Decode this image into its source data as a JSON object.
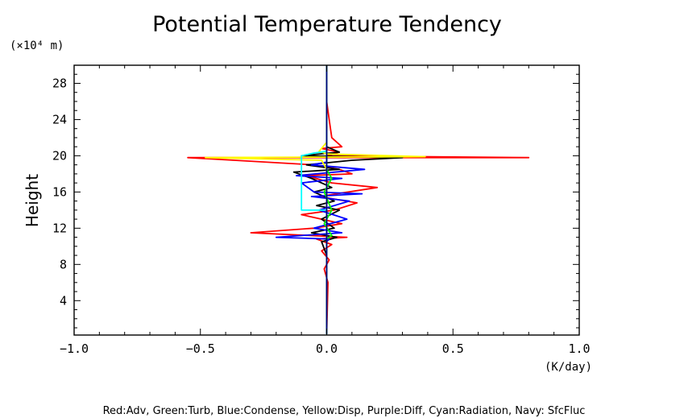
{
  "chart_data": {
    "type": "line",
    "title": "Potential Temperature Tendency",
    "ylabel": "Height",
    "yunit": "(×10⁴ m)",
    "xunit": "(K/day)",
    "footnote": "Red:Adv, Green:Turb, Blue:Condense, Yellow:Disp, Purple:Diff, Cyan:Radiation, Navy: SfcFluc",
    "xlim": [
      -1.0,
      1.0
    ],
    "ylim": [
      0.2,
      30
    ],
    "xticks": [
      -1.0,
      -0.5,
      0.0,
      0.5,
      1.0
    ],
    "xtick_labels": [
      "−1.0",
      "−0.5",
      "0.0",
      "0.5",
      "1.0"
    ],
    "yticks": [
      4,
      8,
      12,
      16,
      20,
      24,
      28
    ],
    "ytick_labels": [
      "4",
      "8",
      "12",
      "16",
      "20",
      "24",
      "28"
    ],
    "grid": false,
    "series": [
      {
        "name": "Red",
        "key": "adv",
        "color": "#ff0000",
        "x": [
          0.0,
          0.005,
          -0.01,
          0.01,
          -0.02,
          0.02,
          -0.04,
          0.08,
          -0.3,
          -0.05,
          0.06,
          -0.1,
          0.03,
          0.12,
          -0.03,
          0.2,
          0.02,
          -0.08,
          0.1,
          0.05,
          -0.05,
          -0.55,
          0.8,
          0.0,
          0.05,
          -0.02,
          0.06,
          0.02,
          0.01,
          0.0,
          0.0
        ],
        "y": [
          0.3,
          6,
          7.5,
          8.5,
          9.5,
          10.2,
          10.8,
          11.0,
          11.5,
          12.0,
          12.5,
          13.5,
          14.0,
          14.8,
          15.5,
          16.5,
          17.0,
          17.8,
          18.0,
          18.5,
          19.0,
          19.8,
          19.8,
          20.0,
          20.4,
          20.8,
          21.0,
          22.0,
          24.0,
          26.0,
          30.0
        ]
      },
      {
        "name": "Black",
        "key": "total",
        "color": "#000000",
        "x": [
          0.0,
          0.0,
          -0.02,
          0.04,
          -0.06,
          0.03,
          -0.02,
          0.05,
          -0.04,
          0.03,
          -0.05,
          0.02,
          -0.06,
          -0.13,
          0.05,
          -0.08,
          0.1,
          0.3,
          -0.1,
          0.05,
          0.0,
          0.0
        ],
        "y": [
          0.3,
          9.0,
          10.5,
          11.0,
          11.5,
          12.0,
          13.0,
          14.0,
          14.5,
          15.0,
          16.0,
          16.5,
          17.5,
          18.2,
          18.5,
          19.0,
          19.5,
          19.8,
          20.0,
          20.4,
          21.0,
          30.0
        ]
      },
      {
        "name": "Blue",
        "key": "condense",
        "color": "#0000ff",
        "x": [
          0.0,
          0.0,
          0.01,
          -0.2,
          0.06,
          -0.05,
          0.08,
          -0.03,
          0.09,
          -0.06,
          0.14,
          -0.05,
          -0.1,
          0.06,
          -0.12,
          0.15,
          -0.06,
          0.0,
          0.0
        ],
        "y": [
          0.3,
          10.5,
          10.8,
          11.0,
          11.5,
          12.0,
          13.0,
          14.0,
          15.0,
          15.5,
          15.8,
          16.0,
          17.0,
          17.5,
          17.8,
          18.5,
          19.0,
          19.3,
          30.0
        ]
      },
      {
        "name": "Yellow",
        "key": "disp",
        "color": "#ffff00",
        "x": [
          0.0,
          0.0,
          -0.02,
          -0.48,
          0.39,
          0.0,
          -0.03,
          0.0,
          0.0
        ],
        "y": [
          0.3,
          18.5,
          19.5,
          19.8,
          19.9,
          20.2,
          20.5,
          21.5,
          30.0
        ]
      },
      {
        "name": "Cyan",
        "key": "radiation",
        "color": "#00ffff",
        "x": [
          0.0,
          0.0,
          -0.1,
          -0.1,
          -0.05,
          0.0,
          0.0
        ],
        "y": [
          0.3,
          14.0,
          14.0,
          20.0,
          20.3,
          20.5,
          30.0
        ]
      },
      {
        "name": "Green",
        "key": "turb",
        "color": "#00ff00",
        "x": [
          0.0,
          0.0,
          0.02,
          -0.01,
          0.02,
          -0.01,
          0.02,
          0.0,
          0.0
        ],
        "y": [
          0.3,
          10.8,
          11.2,
          12.5,
          14.0,
          16.0,
          17.5,
          18.5,
          30.0
        ]
      },
      {
        "name": "Navy",
        "key": "sfcfluc",
        "color": "#000080",
        "x": [
          0.0,
          0.0
        ],
        "y": [
          0.3,
          30.0
        ]
      }
    ]
  }
}
